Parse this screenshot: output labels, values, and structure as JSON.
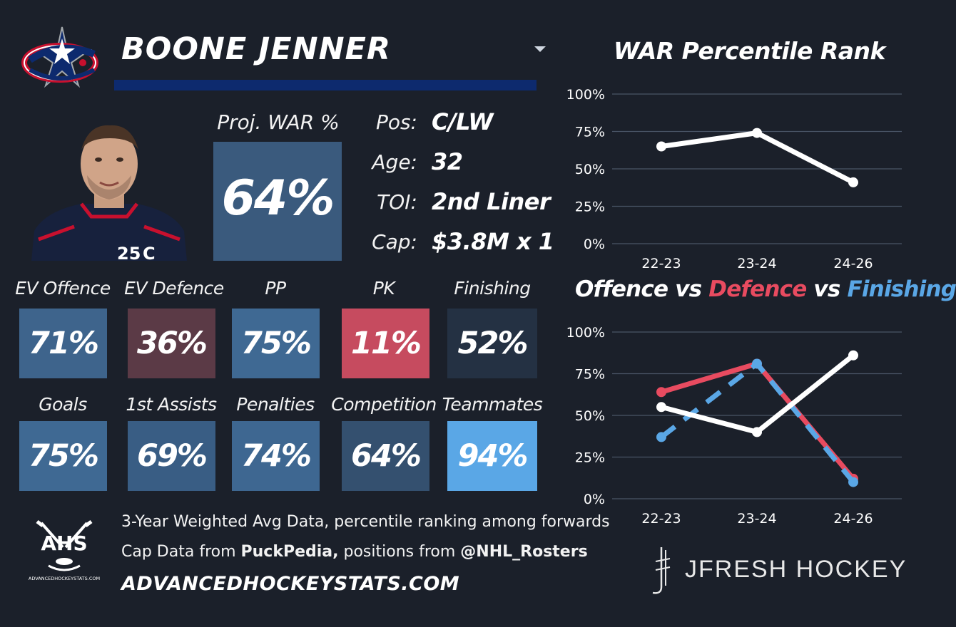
{
  "header": {
    "player_name": "BOONE JENNER",
    "team_colors": {
      "navy": "#0d2a6e",
      "red": "#c8102e"
    }
  },
  "projection": {
    "label": "Proj. WAR %",
    "value": "64%",
    "color": "#3a5a7d"
  },
  "info": [
    {
      "label": "Pos:",
      "value": "C/LW"
    },
    {
      "label": "Age:",
      "value": "32"
    },
    {
      "label": "TOI:",
      "value": "2nd Liner"
    },
    {
      "label": "Cap:",
      "value": "$3.8M x 1"
    }
  ],
  "photo": {
    "jersey_number": "25",
    "captain_mark": "C"
  },
  "stats_row1": [
    {
      "label": "EV Offence",
      "value": "71%",
      "color": "#3e648c"
    },
    {
      "label": "EV Defence",
      "value": "36%",
      "color": "#5b3a46"
    },
    {
      "label": "PP",
      "value": "75%",
      "color": "#3f6993"
    },
    {
      "label": "PK",
      "value": "11%",
      "color": "#c64b5f"
    },
    {
      "label": "Finishing",
      "value": "52%",
      "color": "#243143"
    }
  ],
  "stats_row2": [
    {
      "label": "Goals",
      "value": "75%",
      "color": "#3f6993"
    },
    {
      "label": "1st Assists",
      "value": "69%",
      "color": "#395d84"
    },
    {
      "label": "Penalties",
      "value": "74%",
      "color": "#3e6791"
    },
    {
      "label": "Competition",
      "value": "64%",
      "color": "#34506f"
    },
    {
      "label": "Teammates",
      "value": "94%",
      "color": "#5aa7e6"
    }
  ],
  "footer": {
    "line1": "3-Year Weighted Avg Data, percentile ranking among forwards",
    "line2_prefix": "Cap Data from ",
    "line2_bold1": "PuckPedia,",
    "line2_mid": " positions from ",
    "line2_bold2": "@NHL_Rosters",
    "site": "ADVANCEDHOCKEYSTATS.COM",
    "ahs_logo_text": "AHS",
    "ahs_logo_subtext": "ADVANCEDHOCKEYSTATS.COM",
    "brand": "JFRESH HOCKEY"
  },
  "chart_titles": {
    "war": "WAR Percentile Rank",
    "offence": "Offence",
    "vs1": " vs ",
    "defence": "Defence",
    "vs2": " vs ",
    "finishing": "Finishing"
  },
  "chart_data": [
    {
      "type": "line",
      "title": "WAR Percentile Rank",
      "categories": [
        "22-23",
        "23-24",
        "24-26"
      ],
      "y_ticks": [
        "100%",
        "75%",
        "50%",
        "25%",
        "0%"
      ],
      "ylim": [
        0,
        100
      ],
      "grid": true,
      "series": [
        {
          "values": [
            65,
            74,
            41
          ],
          "color": "#ffffff",
          "dashed": false
        }
      ]
    },
    {
      "type": "line",
      "title": "Offence vs Defence vs Finishing",
      "categories": [
        "22-23",
        "23-24",
        "24-26"
      ],
      "y_ticks": [
        "100%",
        "75%",
        "50%",
        "25%",
        "0%"
      ],
      "ylim": [
        0,
        100
      ],
      "grid": true,
      "series": [
        {
          "name": "Offence",
          "values": [
            55,
            40,
            86
          ],
          "color": "#ffffff",
          "dashed": false
        },
        {
          "name": "Defence",
          "values": [
            64,
            81,
            12
          ],
          "color": "#e84b60",
          "dashed": false
        },
        {
          "name": "Finishing",
          "values": [
            37,
            81,
            10
          ],
          "color": "#5aa7e6",
          "dashed": true
        }
      ]
    }
  ]
}
